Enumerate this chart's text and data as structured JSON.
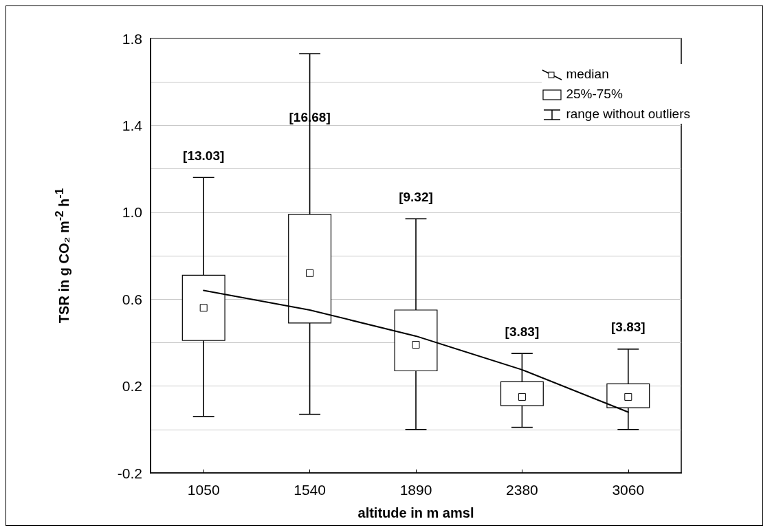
{
  "chart_data": {
    "type": "box",
    "xlabel": "altitude in m amsl",
    "ylabel": "TSR in g CO₂ m$^{-2}$ h$^{-1}$",
    "categories": [
      "1050",
      "1540",
      "1890",
      "2380",
      "3060"
    ],
    "ylim": [
      -0.2,
      1.8
    ],
    "yticks": [
      -0.2,
      {
        "value": 0,
        "label": null
      },
      0.2,
      {
        "value": 0.4,
        "label": null
      },
      0.6,
      {
        "value": 0.8,
        "label": null
      },
      {
        "value": 1,
        "label": "1.0"
      },
      {
        "value": 1.2,
        "label": null
      },
      1.4,
      {
        "value": 1.6,
        "label": null
      },
      1.8
    ],
    "grid": "y",
    "series": [
      {
        "type": "box",
        "color": "#000000",
        "boxes": [
          {
            "low": 0.06,
            "q1": 0.41,
            "median": 0.56,
            "q3": 0.71,
            "high": 1.16
          },
          {
            "low": 0.07,
            "q1": 0.49,
            "median": 0.72,
            "q3": 0.99,
            "high": 1.73
          },
          {
            "low": 0.0,
            "q1": 0.27,
            "median": 0.39,
            "q3": 0.55,
            "high": 0.97
          },
          {
            "low": 0.01,
            "q1": 0.11,
            "median": 0.15,
            "q3": 0.22,
            "high": 0.35
          },
          {
            "low": 0.0,
            "q1": 0.1,
            "median": 0.15,
            "q3": 0.21,
            "high": 0.37
          }
        ]
      },
      {
        "type": "line",
        "color": "#000000",
        "marker": "none",
        "values": [
          0.64,
          0.55,
          0.43,
          0.275,
          0.08
        ]
      }
    ],
    "annotations": [
      "median",
      "25%-75%",
      "range without outliers",
      "[13.03]",
      "[16.68]",
      "[9.32]",
      "[3.83]",
      "[3.83]"
    ]
  }
}
